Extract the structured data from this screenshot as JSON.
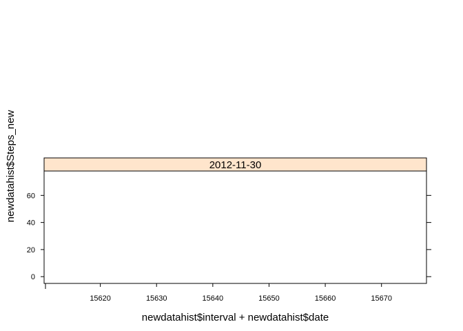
{
  "chart_data": {
    "type": "scatter",
    "title": "",
    "xlabel": "newdatahist$interval + newdatahist$date",
    "ylabel": "newdatahist$Steps_new",
    "panel": {
      "strip_label": "2012-11-30",
      "strip_color": "#ffe5cc"
    },
    "xlim": [
      15610,
      15678
    ],
    "ylim": [
      -5,
      78
    ],
    "x_ticks": [
      15620,
      15630,
      15640,
      15650,
      15660,
      15670
    ],
    "y_ticks": [
      0,
      20,
      40,
      60
    ],
    "series": [
      {
        "values": []
      }
    ],
    "grid": false,
    "legend": "none"
  }
}
